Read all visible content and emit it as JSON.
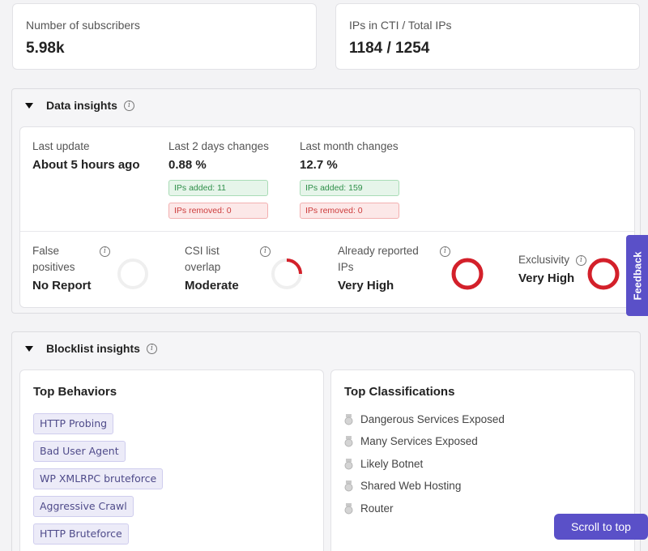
{
  "stats": {
    "subscribers_label": "Number of subscribers",
    "subscribers_value": "5.98k",
    "ips_label": "IPs in CTI / Total IPs",
    "ips_value": "1184 / 1254"
  },
  "data_insights": {
    "title": "Data insights",
    "last_update_label": "Last update",
    "last_update_value": "About 5 hours ago",
    "two_days_label": "Last 2 days changes",
    "two_days_value": "0.88 %",
    "two_days_added": "IPs added: 11",
    "two_days_removed": "IPs removed: 0",
    "month_label": "Last month changes",
    "month_value": "12.7 %",
    "month_added": "IPs added: 159",
    "month_removed": "IPs removed: 0",
    "gauges": [
      {
        "label_line1": "False",
        "label_line2": "positives",
        "value": "No Report",
        "level": 0.0
      },
      {
        "label_line1": "CSI list",
        "label_line2": "overlap",
        "value": "Moderate",
        "level": 0.25
      },
      {
        "label_line1": "Already reported",
        "label_line2": "IPs",
        "value": "Very High",
        "level": 1.0
      },
      {
        "label_line1": "Exclusivity",
        "label_line2": "",
        "value": "Very High",
        "level": 1.0
      }
    ]
  },
  "blocklist_insights": {
    "title": "Blocklist insights",
    "behaviors_title": "Top Behaviors",
    "behaviors": [
      "HTTP Probing",
      "Bad User Agent",
      "WP XMLRPC bruteforce",
      "Aggressive Crawl",
      "HTTP Bruteforce"
    ],
    "classifications_title": "Top Classifications",
    "classifications": [
      "Dangerous Services Exposed",
      "Many Services Exposed",
      "Likely Botnet",
      "Shared Web Hosting",
      "Router"
    ]
  },
  "feedback_label": "Feedback",
  "scroll_top_label": "Scroll to top",
  "colors": {
    "accent": "#5a50c8",
    "gauge_active": "#d3202a",
    "gauge_track": "#efefef"
  }
}
